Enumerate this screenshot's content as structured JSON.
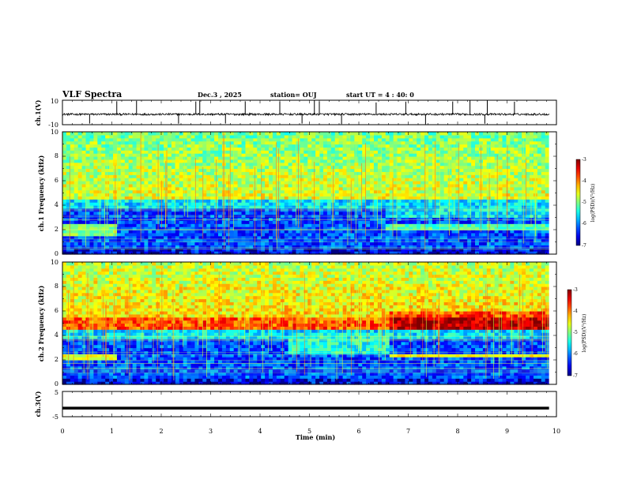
{
  "header": {
    "title": "VLF Spectra",
    "date": "Dec.3 , 2025",
    "station": "station= OUJ",
    "start": "start UT = 4 : 40: 0"
  },
  "chart_data": [
    {
      "type": "line",
      "panel": "ch1-waveform",
      "ylabel": "ch.1(V)",
      "ytick_labels": [
        "10",
        "-10"
      ],
      "ylim": [
        -10,
        10
      ],
      "baseline": -1.5,
      "spike_times": [
        0.55,
        1.1,
        1.5,
        2.35,
        2.7,
        2.78,
        3.3,
        3.7,
        4.4,
        4.85,
        5.1,
        5.2,
        5.65,
        6.35,
        6.95,
        7.35,
        7.9,
        8.25,
        8.55,
        8.6,
        9.15
      ]
    },
    {
      "type": "heatmap",
      "panel": "ch1-spectrogram",
      "ylabel": "ch.1 Frequency (kHz)",
      "ytick_labels": [
        "0",
        "2",
        "4",
        "6",
        "8",
        "10"
      ],
      "ylim": [
        0,
        10
      ],
      "xlim": [
        0,
        10
      ],
      "colorbar": {
        "label": "log(PSD)(V²/Hz)",
        "tick_labels": [
          "-3",
          "-4",
          "-5",
          "-6",
          "-7"
        ],
        "range": [
          -7,
          -3
        ]
      },
      "segments": [
        {
          "t_start": 0.0,
          "t_end": 1.07,
          "band_low_kHz": [
            1.6,
            2.6
          ],
          "band_level": -5.0
        },
        {
          "t_start": 1.07,
          "t_end": 6.5,
          "band_low_kHz": [
            0.0,
            0.0
          ],
          "band_level": -6.5
        },
        {
          "t_start": 6.5,
          "t_end": 9.85,
          "band_low_kHz": [
            2.0,
            2.6
          ],
          "band_level": -5.2
        }
      ],
      "upper_level": -4.6,
      "dark_band_kHz": [
        1.0,
        4.4
      ]
    },
    {
      "type": "heatmap",
      "panel": "ch2-spectrogram",
      "ylabel": "ch.2 Frequency (kHz)",
      "ytick_labels": [
        "0",
        "2",
        "4",
        "6",
        "8",
        "10"
      ],
      "ylim": [
        0,
        10
      ],
      "xlim": [
        0,
        10
      ],
      "colorbar": {
        "label": "log(PSD)(V²/Hz)",
        "tick_labels": [
          "-3",
          "-4",
          "-5",
          "-6",
          "-7"
        ],
        "range": [
          -7,
          -3
        ]
      },
      "segments": [
        {
          "t_start": 0.0,
          "t_end": 1.07,
          "band_low_kHz": [
            2.0,
            2.6
          ],
          "band_level": -4.6
        },
        {
          "t_start": 1.07,
          "t_end": 6.6,
          "band_low_kHz": [
            0.0,
            0.0
          ],
          "band_level": -6.5
        },
        {
          "t_start": 6.6,
          "t_end": 9.85,
          "band_low_kHz": [
            2.2,
            2.6
          ],
          "band_level": -4.5
        }
      ],
      "upper_level": -4.3,
      "bright_band_kHz": [
        4.6,
        5.6
      ],
      "dark_band_kHz": [
        1.0,
        4.0
      ]
    },
    {
      "type": "line",
      "panel": "ch3-waveform",
      "ylabel": "ch.3(V)",
      "ytick_labels": [
        "5",
        "-5"
      ],
      "ylim": [
        -5,
        5
      ],
      "constant_value": -1.6
    }
  ],
  "xaxis": {
    "label": "Time (min)",
    "tick_labels": [
      "0",
      "1",
      "2",
      "3",
      "4",
      "5",
      "6",
      "7",
      "8",
      "9",
      "10"
    ],
    "xlim": [
      0,
      10
    ],
    "data_end": 9.85
  }
}
